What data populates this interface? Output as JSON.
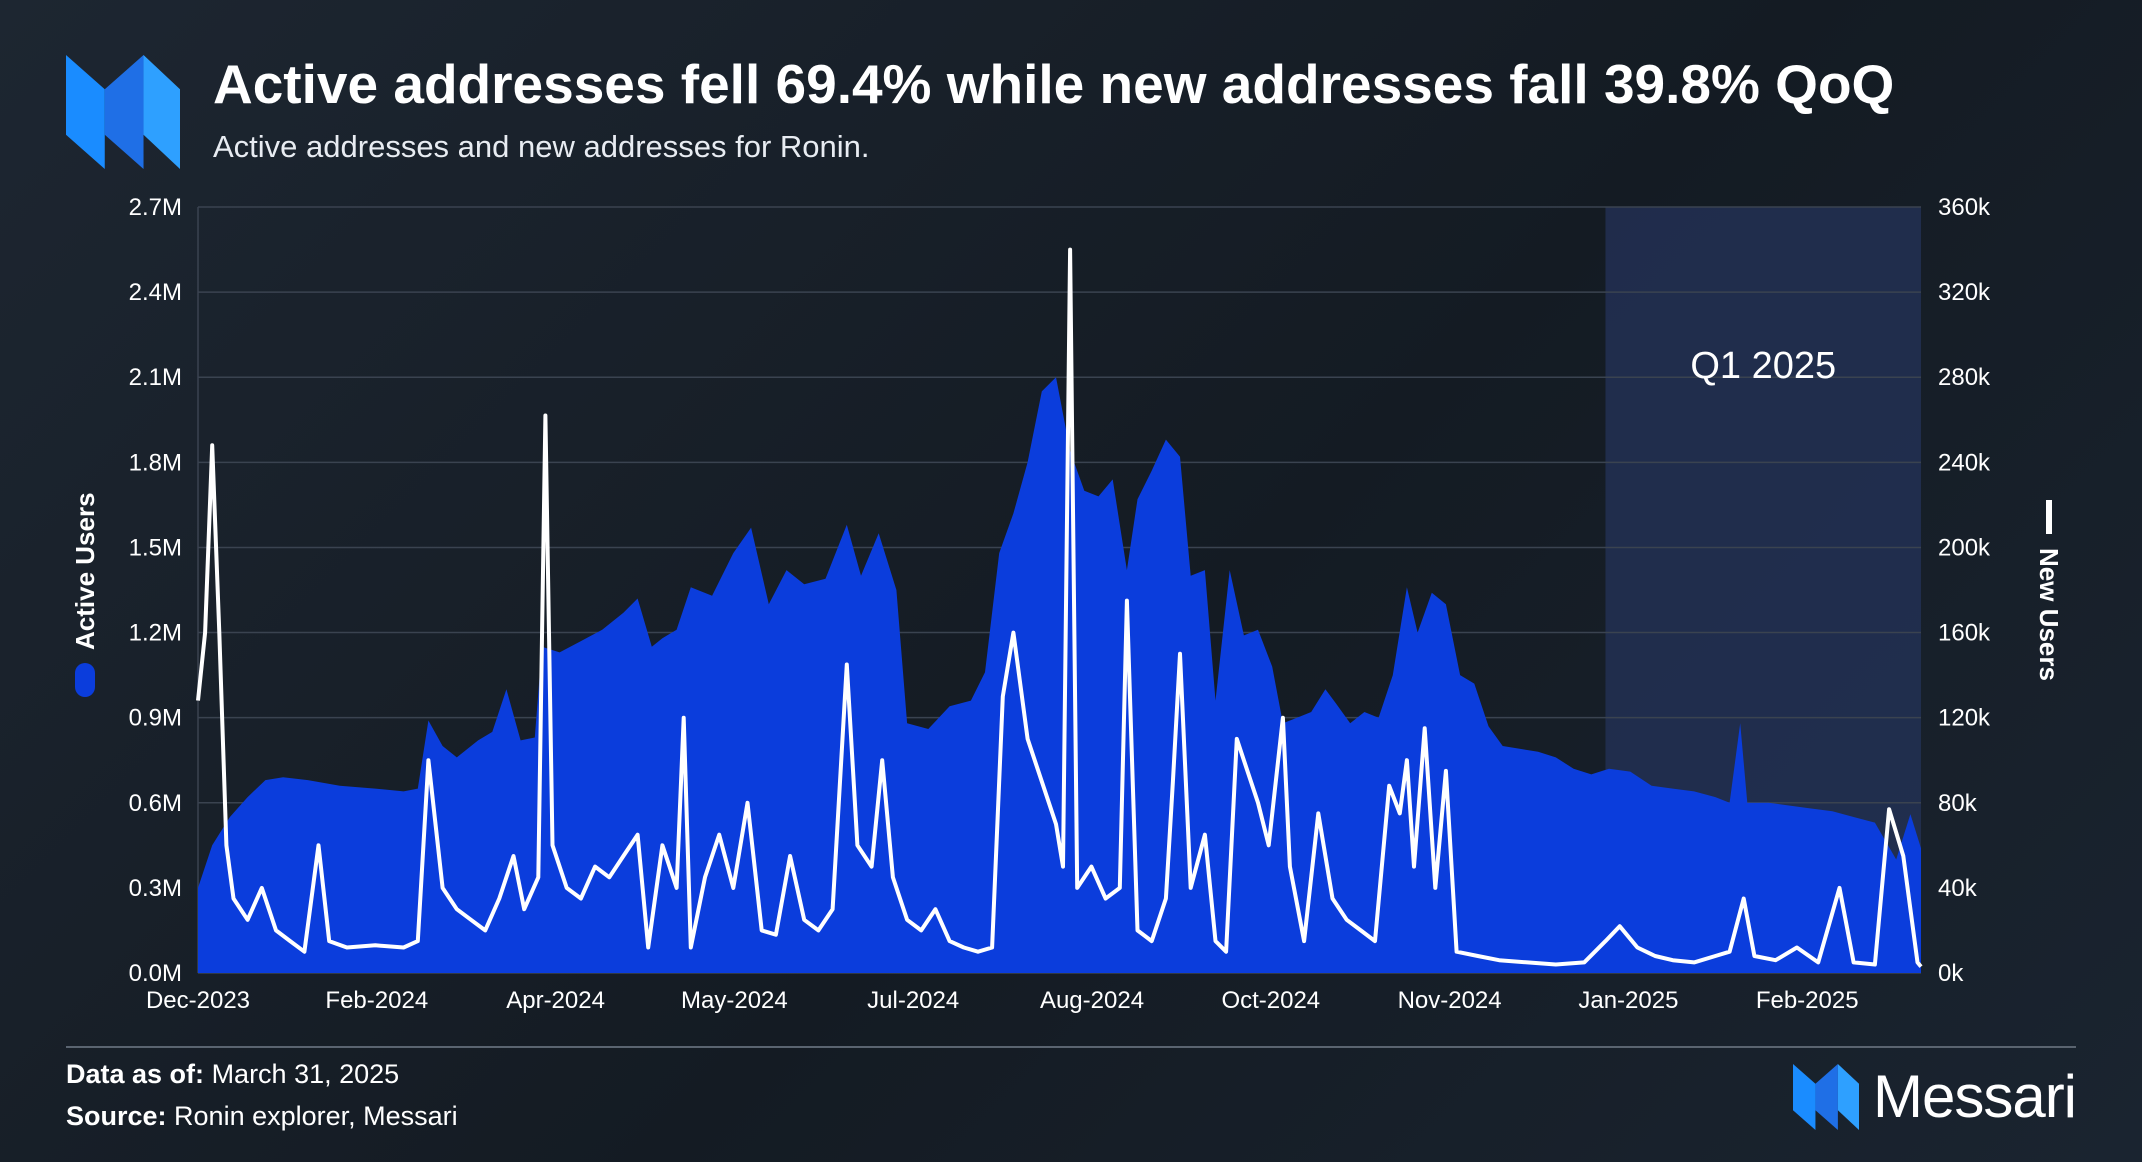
{
  "header": {
    "title": "Active addresses fell 69.4% while new addresses fall 39.8% QoQ",
    "subtitle": "Active addresses and new addresses for Ronin."
  },
  "footer": {
    "data_as_of_label": "Data as of:",
    "data_as_of_value": "March 31, 2025",
    "source_label": "Source:",
    "source_value": "Ronin explorer, Messari",
    "brand_name": "Messari",
    "logo_icon": "messari-logo-icon"
  },
  "colors": {
    "active_area": "#0b3ddc",
    "new_line": "#ffffff",
    "highlight_band": "#24335a",
    "grid": "#3a4350",
    "brand_blue": "#1a8cff"
  },
  "chart_data": {
    "type": "area",
    "x_start": "2023-12-01",
    "x_end": "2025-03-31",
    "x_ticks": [
      "Dec-2023",
      "Feb-2024",
      "Apr-2024",
      "May-2024",
      "Jul-2024",
      "Aug-2024",
      "Oct-2024",
      "Nov-2024",
      "Jan-2025",
      "Feb-2025"
    ],
    "y_left": {
      "label": "Active Users",
      "ticks": [
        "0.0M",
        "0.3M",
        "0.6M",
        "0.9M",
        "1.2M",
        "1.5M",
        "1.8M",
        "2.1M",
        "2.4M",
        "2.7M"
      ],
      "ylim": [
        0,
        2700000
      ]
    },
    "y_right": {
      "label": "New Users",
      "ticks": [
        "0k",
        "40k",
        "80k",
        "120k",
        "160k",
        "200k",
        "240k",
        "280k",
        "320k",
        "360k"
      ],
      "ylim": [
        0,
        360000
      ]
    },
    "grid": true,
    "annotation": {
      "text": "Q1 2025",
      "from": "2025-01-01",
      "to": "2025-03-31"
    },
    "series": [
      {
        "name": "Active Users",
        "kind": "area",
        "axis": "left",
        "points": [
          [
            "2023-12-01",
            300000
          ],
          [
            "2023-12-05",
            450000
          ],
          [
            "2023-12-10",
            550000
          ],
          [
            "2023-12-15",
            620000
          ],
          [
            "2023-12-20",
            680000
          ],
          [
            "2023-12-25",
            690000
          ],
          [
            "2024-01-01",
            680000
          ],
          [
            "2024-01-10",
            660000
          ],
          [
            "2024-01-20",
            650000
          ],
          [
            "2024-01-28",
            640000
          ],
          [
            "2024-02-01",
            650000
          ],
          [
            "2024-02-04",
            890000
          ],
          [
            "2024-02-08",
            800000
          ],
          [
            "2024-02-12",
            760000
          ],
          [
            "2024-02-18",
            820000
          ],
          [
            "2024-02-22",
            850000
          ],
          [
            "2024-02-26",
            1000000
          ],
          [
            "2024-03-01",
            820000
          ],
          [
            "2024-03-05",
            830000
          ],
          [
            "2024-03-07",
            1150000
          ],
          [
            "2024-03-12",
            1130000
          ],
          [
            "2024-03-18",
            1170000
          ],
          [
            "2024-03-24",
            1210000
          ],
          [
            "2024-03-30",
            1270000
          ],
          [
            "2024-04-03",
            1320000
          ],
          [
            "2024-04-07",
            1150000
          ],
          [
            "2024-04-10",
            1180000
          ],
          [
            "2024-04-14",
            1210000
          ],
          [
            "2024-04-18",
            1360000
          ],
          [
            "2024-04-24",
            1330000
          ],
          [
            "2024-04-30",
            1480000
          ],
          [
            "2024-05-05",
            1570000
          ],
          [
            "2024-05-10",
            1300000
          ],
          [
            "2024-05-15",
            1420000
          ],
          [
            "2024-05-20",
            1370000
          ],
          [
            "2024-05-26",
            1390000
          ],
          [
            "2024-06-01",
            1580000
          ],
          [
            "2024-06-05",
            1400000
          ],
          [
            "2024-06-10",
            1550000
          ],
          [
            "2024-06-15",
            1350000
          ],
          [
            "2024-06-18",
            880000
          ],
          [
            "2024-06-24",
            860000
          ],
          [
            "2024-06-30",
            940000
          ],
          [
            "2024-07-06",
            960000
          ],
          [
            "2024-07-10",
            1060000
          ],
          [
            "2024-07-14",
            1480000
          ],
          [
            "2024-07-18",
            1620000
          ],
          [
            "2024-07-22",
            1800000
          ],
          [
            "2024-07-26",
            2050000
          ],
          [
            "2024-07-30",
            2100000
          ],
          [
            "2024-08-03",
            1840000
          ],
          [
            "2024-08-07",
            1700000
          ],
          [
            "2024-08-11",
            1680000
          ],
          [
            "2024-08-15",
            1740000
          ],
          [
            "2024-08-19",
            1420000
          ],
          [
            "2024-08-22",
            1670000
          ],
          [
            "2024-08-26",
            1770000
          ],
          [
            "2024-08-30",
            1880000
          ],
          [
            "2024-09-03",
            1820000
          ],
          [
            "2024-09-06",
            1400000
          ],
          [
            "2024-09-10",
            1420000
          ],
          [
            "2024-09-13",
            960000
          ],
          [
            "2024-09-17",
            1420000
          ],
          [
            "2024-09-21",
            1190000
          ],
          [
            "2024-09-25",
            1210000
          ],
          [
            "2024-09-29",
            1080000
          ],
          [
            "2024-10-02",
            880000
          ],
          [
            "2024-10-06",
            900000
          ],
          [
            "2024-10-10",
            920000
          ],
          [
            "2024-10-14",
            1000000
          ],
          [
            "2024-10-17",
            950000
          ],
          [
            "2024-10-21",
            880000
          ],
          [
            "2024-10-25",
            920000
          ],
          [
            "2024-10-29",
            900000
          ],
          [
            "2024-11-02",
            1050000
          ],
          [
            "2024-11-06",
            1360000
          ],
          [
            "2024-11-09",
            1200000
          ],
          [
            "2024-11-13",
            1340000
          ],
          [
            "2024-11-17",
            1300000
          ],
          [
            "2024-11-21",
            1050000
          ],
          [
            "2024-11-25",
            1020000
          ],
          [
            "2024-11-29",
            870000
          ],
          [
            "2024-12-03",
            800000
          ],
          [
            "2024-12-08",
            790000
          ],
          [
            "2024-12-13",
            780000
          ],
          [
            "2024-12-18",
            760000
          ],
          [
            "2024-12-23",
            720000
          ],
          [
            "2024-12-28",
            700000
          ],
          [
            "2025-01-02",
            720000
          ],
          [
            "2025-01-08",
            710000
          ],
          [
            "2025-01-14",
            660000
          ],
          [
            "2025-01-20",
            650000
          ],
          [
            "2025-01-26",
            640000
          ],
          [
            "2025-02-01",
            620000
          ],
          [
            "2025-02-05",
            600000
          ],
          [
            "2025-02-08",
            880000
          ],
          [
            "2025-02-10",
            600000
          ],
          [
            "2025-02-16",
            600000
          ],
          [
            "2025-02-22",
            590000
          ],
          [
            "2025-02-28",
            580000
          ],
          [
            "2025-03-06",
            570000
          ],
          [
            "2025-03-12",
            550000
          ],
          [
            "2025-03-18",
            530000
          ],
          [
            "2025-03-24",
            400000
          ],
          [
            "2025-03-28",
            560000
          ],
          [
            "2025-03-31",
            440000
          ]
        ]
      },
      {
        "name": "New Users",
        "kind": "line",
        "axis": "right",
        "points": [
          [
            "2023-12-01",
            128000
          ],
          [
            "2023-12-03",
            160000
          ],
          [
            "2023-12-05",
            248000
          ],
          [
            "2023-12-07",
            160000
          ],
          [
            "2023-12-09",
            60000
          ],
          [
            "2023-12-11",
            35000
          ],
          [
            "2023-12-15",
            25000
          ],
          [
            "2023-12-19",
            40000
          ],
          [
            "2023-12-23",
            20000
          ],
          [
            "2023-12-27",
            15000
          ],
          [
            "2023-12-31",
            10000
          ],
          [
            "2024-01-04",
            60000
          ],
          [
            "2024-01-07",
            15000
          ],
          [
            "2024-01-12",
            12000
          ],
          [
            "2024-01-20",
            13000
          ],
          [
            "2024-01-28",
            12000
          ],
          [
            "2024-02-01",
            15000
          ],
          [
            "2024-02-04",
            100000
          ],
          [
            "2024-02-08",
            40000
          ],
          [
            "2024-02-12",
            30000
          ],
          [
            "2024-02-16",
            25000
          ],
          [
            "2024-02-20",
            20000
          ],
          [
            "2024-02-24",
            35000
          ],
          [
            "2024-02-28",
            55000
          ],
          [
            "2024-03-02",
            30000
          ],
          [
            "2024-03-06",
            45000
          ],
          [
            "2024-03-08",
            262000
          ],
          [
            "2024-03-10",
            60000
          ],
          [
            "2024-03-14",
            40000
          ],
          [
            "2024-03-18",
            35000
          ],
          [
            "2024-03-22",
            50000
          ],
          [
            "2024-03-26",
            45000
          ],
          [
            "2024-03-30",
            55000
          ],
          [
            "2024-04-03",
            65000
          ],
          [
            "2024-04-06",
            12000
          ],
          [
            "2024-04-10",
            60000
          ],
          [
            "2024-04-14",
            40000
          ],
          [
            "2024-04-16",
            120000
          ],
          [
            "2024-04-18",
            12000
          ],
          [
            "2024-04-22",
            45000
          ],
          [
            "2024-04-26",
            65000
          ],
          [
            "2024-04-30",
            40000
          ],
          [
            "2024-05-04",
            80000
          ],
          [
            "2024-05-08",
            20000
          ],
          [
            "2024-05-12",
            18000
          ],
          [
            "2024-05-16",
            55000
          ],
          [
            "2024-05-20",
            25000
          ],
          [
            "2024-05-24",
            20000
          ],
          [
            "2024-05-28",
            30000
          ],
          [
            "2024-06-01",
            145000
          ],
          [
            "2024-06-04",
            60000
          ],
          [
            "2024-06-08",
            50000
          ],
          [
            "2024-06-11",
            100000
          ],
          [
            "2024-06-14",
            45000
          ],
          [
            "2024-06-18",
            25000
          ],
          [
            "2024-06-22",
            20000
          ],
          [
            "2024-06-26",
            30000
          ],
          [
            "2024-06-30",
            15000
          ],
          [
            "2024-07-04",
            12000
          ],
          [
            "2024-07-08",
            10000
          ],
          [
            "2024-07-12",
            12000
          ],
          [
            "2024-07-15",
            130000
          ],
          [
            "2024-07-18",
            160000
          ],
          [
            "2024-07-22",
            110000
          ],
          [
            "2024-07-26",
            90000
          ],
          [
            "2024-07-30",
            70000
          ],
          [
            "2024-08-01",
            50000
          ],
          [
            "2024-08-03",
            340000
          ],
          [
            "2024-08-05",
            40000
          ],
          [
            "2024-08-09",
            50000
          ],
          [
            "2024-08-13",
            35000
          ],
          [
            "2024-08-17",
            40000
          ],
          [
            "2024-08-19",
            175000
          ],
          [
            "2024-08-22",
            20000
          ],
          [
            "2024-08-26",
            15000
          ],
          [
            "2024-08-30",
            35000
          ],
          [
            "2024-09-01",
            90000
          ],
          [
            "2024-09-03",
            150000
          ],
          [
            "2024-09-06",
            40000
          ],
          [
            "2024-09-10",
            65000
          ],
          [
            "2024-09-13",
            15000
          ],
          [
            "2024-09-16",
            10000
          ],
          [
            "2024-09-19",
            110000
          ],
          [
            "2024-09-22",
            95000
          ],
          [
            "2024-09-25",
            80000
          ],
          [
            "2024-09-28",
            60000
          ],
          [
            "2024-10-02",
            120000
          ],
          [
            "2024-10-04",
            50000
          ],
          [
            "2024-10-08",
            15000
          ],
          [
            "2024-10-12",
            75000
          ],
          [
            "2024-10-16",
            35000
          ],
          [
            "2024-10-20",
            25000
          ],
          [
            "2024-10-24",
            20000
          ],
          [
            "2024-10-28",
            15000
          ],
          [
            "2024-11-01",
            88000
          ],
          [
            "2024-11-04",
            75000
          ],
          [
            "2024-11-06",
            100000
          ],
          [
            "2024-11-08",
            50000
          ],
          [
            "2024-11-11",
            115000
          ],
          [
            "2024-11-14",
            40000
          ],
          [
            "2024-11-17",
            95000
          ],
          [
            "2024-11-20",
            10000
          ],
          [
            "2024-11-26",
            8000
          ],
          [
            "2024-12-02",
            6000
          ],
          [
            "2024-12-10",
            5000
          ],
          [
            "2024-12-18",
            4000
          ],
          [
            "2024-12-26",
            5000
          ],
          [
            "2025-01-01",
            15000
          ],
          [
            "2025-01-05",
            22000
          ],
          [
            "2025-01-10",
            12000
          ],
          [
            "2025-01-15",
            8000
          ],
          [
            "2025-01-20",
            6000
          ],
          [
            "2025-01-26",
            5000
          ],
          [
            "2025-02-01",
            8000
          ],
          [
            "2025-02-05",
            10000
          ],
          [
            "2025-02-09",
            35000
          ],
          [
            "2025-02-12",
            8000
          ],
          [
            "2025-02-18",
            6000
          ],
          [
            "2025-02-24",
            12000
          ],
          [
            "2025-03-02",
            5000
          ],
          [
            "2025-03-08",
            40000
          ],
          [
            "2025-03-12",
            5000
          ],
          [
            "2025-03-18",
            4000
          ],
          [
            "2025-03-22",
            77000
          ],
          [
            "2025-03-26",
            55000
          ],
          [
            "2025-03-30",
            5000
          ],
          [
            "2025-03-31",
            3000
          ]
        ]
      }
    ]
  }
}
